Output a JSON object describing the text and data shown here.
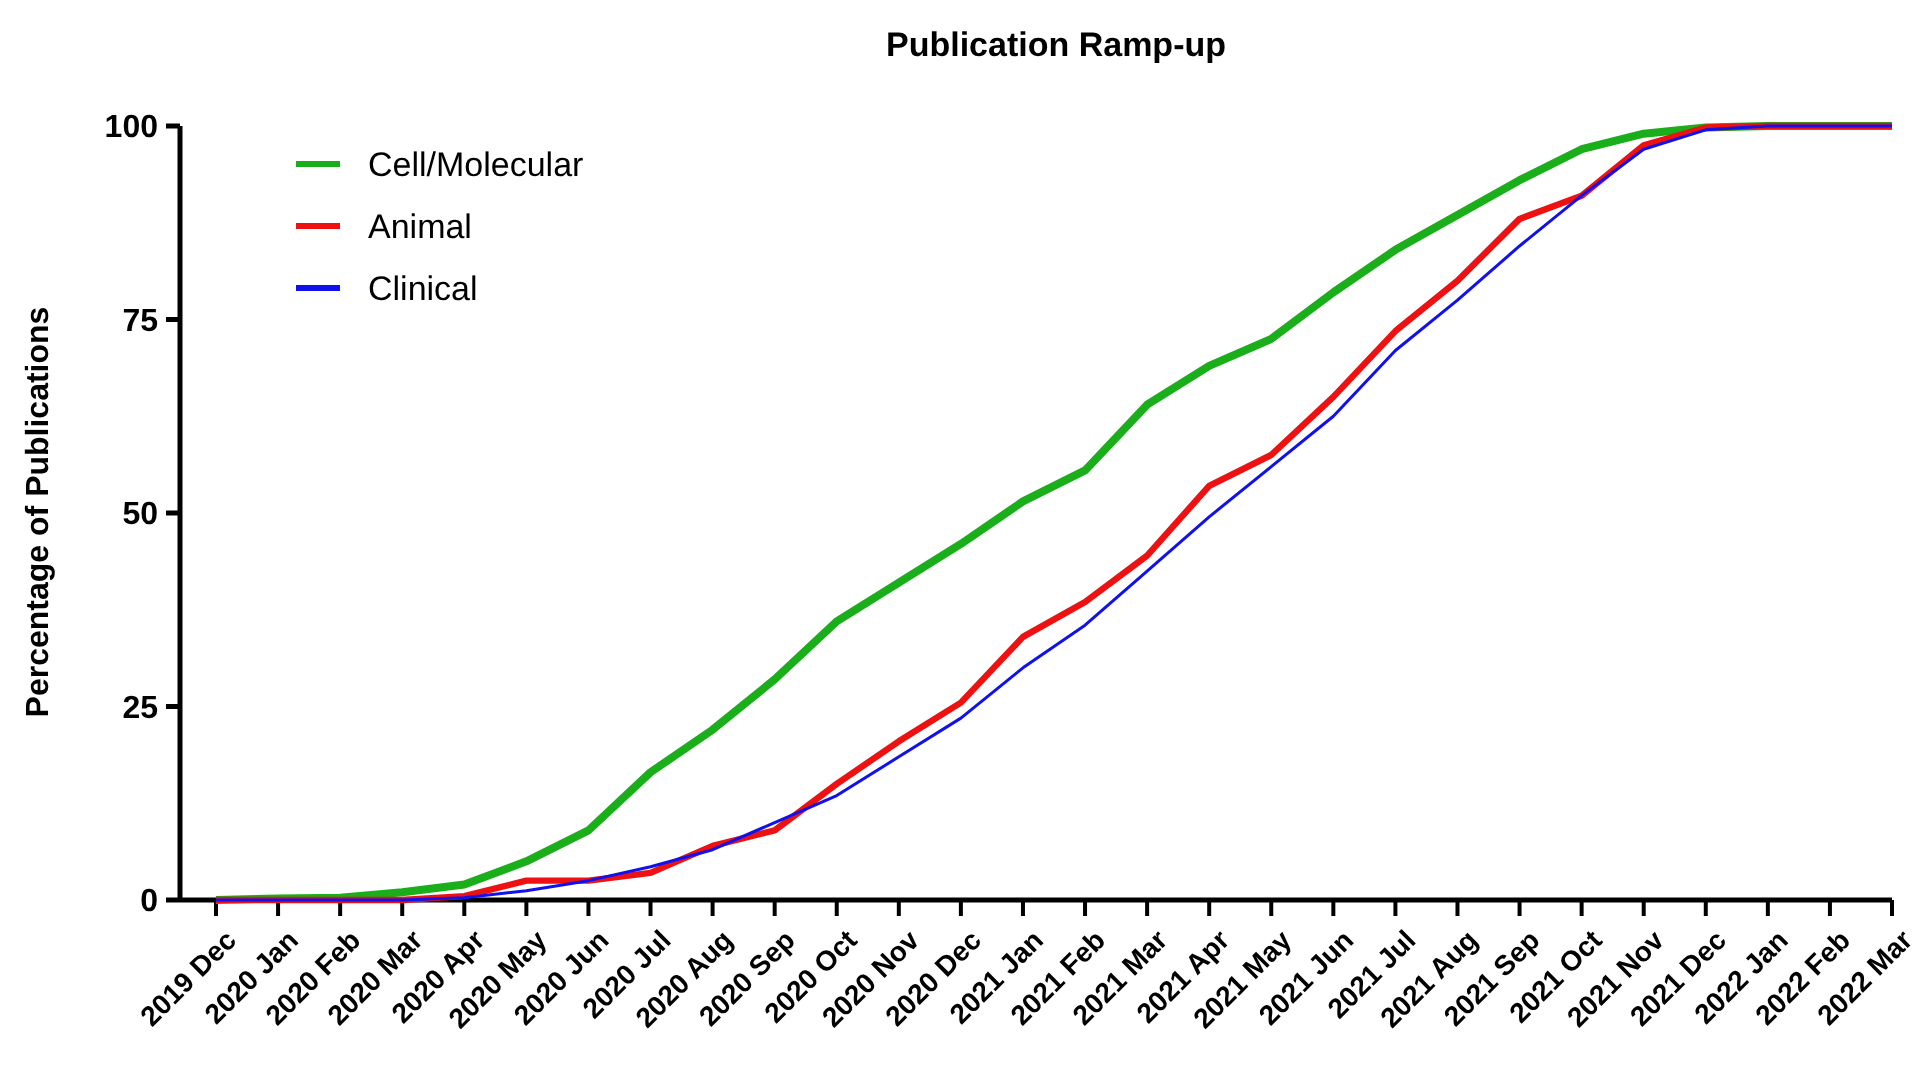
{
  "chart_data": {
    "type": "line",
    "title": "Publication Ramp-up",
    "ylabel": "Percentage of Publications",
    "categories": [
      "2019 Dec",
      "2020 Jan",
      "2020 Feb",
      "2020 Mar",
      "2020 Apr",
      "2020 May",
      "2020 Jun",
      "2020 Jul",
      "2020 Aug",
      "2020 Sep",
      "2020 Oct",
      "2020 Nov",
      "2020 Dec",
      "2021 Jan",
      "2021 Feb",
      "2021 Mar",
      "2021 Apr",
      "2021 May",
      "2021 Jun",
      "2021 Jul",
      "2021 Aug",
      "2021 Sep",
      "2021 Oct",
      "2021 Nov",
      "2021 Dec",
      "2022 Jan",
      "2022 Feb",
      "2022 Mar"
    ],
    "series": [
      {
        "name": "Cell/Molecular",
        "color": "#1aaf1a",
        "values": [
          0,
          0.2,
          0.3,
          1,
          2,
          5,
          9,
          16.5,
          22,
          28.5,
          36,
          41,
          46,
          51.5,
          55.5,
          64,
          69,
          72.5,
          78.5,
          84,
          88.5,
          93,
          97,
          99,
          99.8,
          100,
          100,
          100
        ]
      },
      {
        "name": "Animal",
        "color": "#ee1111",
        "values": [
          0,
          0,
          0,
          0,
          0.5,
          2.5,
          2.5,
          3.5,
          7,
          9,
          15,
          20.5,
          25.5,
          34,
          38.5,
          44.5,
          53.5,
          57.5,
          65,
          73.5,
          80,
          88,
          91,
          97.5,
          99.8,
          100,
          100,
          100
        ]
      },
      {
        "name": "Clinical",
        "color": "#1111ee",
        "values": [
          0,
          0,
          0,
          0,
          0.3,
          1.2,
          2.5,
          4.3,
          6.5,
          10,
          13.5,
          18.5,
          23.5,
          30,
          35.5,
          42.5,
          49.5,
          56,
          62.5,
          71,
          77.5,
          84.5,
          91,
          97,
          99.5,
          100,
          100,
          100
        ]
      }
    ],
    "ylim": [
      0,
      100
    ],
    "yticks": [
      0,
      25,
      50,
      75,
      100
    ],
    "grid": false,
    "legend": "top left",
    "marker": "none",
    "line_style": "solid"
  }
}
